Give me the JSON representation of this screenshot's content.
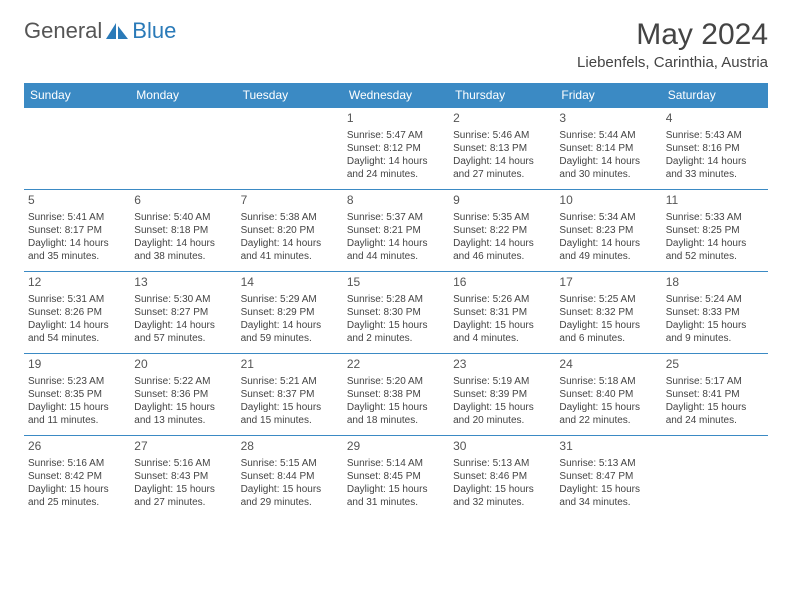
{
  "logo": {
    "part1": "General",
    "part2": "Blue"
  },
  "title": "May 2024",
  "location": "Liebenfels, Carinthia, Austria",
  "colors": {
    "header_bg": "#3b8ac4",
    "header_fg": "#ffffff",
    "border": "#3b8ac4",
    "text": "#444444",
    "logo_gray": "#555555",
    "logo_blue": "#2a7ab8",
    "background": "#ffffff"
  },
  "day_headers": [
    "Sunday",
    "Monday",
    "Tuesday",
    "Wednesday",
    "Thursday",
    "Friday",
    "Saturday"
  ],
  "weeks": [
    [
      null,
      null,
      null,
      {
        "n": "1",
        "sr": "5:47 AM",
        "ss": "8:12 PM",
        "dl": "14 hours and 24 minutes."
      },
      {
        "n": "2",
        "sr": "5:46 AM",
        "ss": "8:13 PM",
        "dl": "14 hours and 27 minutes."
      },
      {
        "n": "3",
        "sr": "5:44 AM",
        "ss": "8:14 PM",
        "dl": "14 hours and 30 minutes."
      },
      {
        "n": "4",
        "sr": "5:43 AM",
        "ss": "8:16 PM",
        "dl": "14 hours and 33 minutes."
      }
    ],
    [
      {
        "n": "5",
        "sr": "5:41 AM",
        "ss": "8:17 PM",
        "dl": "14 hours and 35 minutes."
      },
      {
        "n": "6",
        "sr": "5:40 AM",
        "ss": "8:18 PM",
        "dl": "14 hours and 38 minutes."
      },
      {
        "n": "7",
        "sr": "5:38 AM",
        "ss": "8:20 PM",
        "dl": "14 hours and 41 minutes."
      },
      {
        "n": "8",
        "sr": "5:37 AM",
        "ss": "8:21 PM",
        "dl": "14 hours and 44 minutes."
      },
      {
        "n": "9",
        "sr": "5:35 AM",
        "ss": "8:22 PM",
        "dl": "14 hours and 46 minutes."
      },
      {
        "n": "10",
        "sr": "5:34 AM",
        "ss": "8:23 PM",
        "dl": "14 hours and 49 minutes."
      },
      {
        "n": "11",
        "sr": "5:33 AM",
        "ss": "8:25 PM",
        "dl": "14 hours and 52 minutes."
      }
    ],
    [
      {
        "n": "12",
        "sr": "5:31 AM",
        "ss": "8:26 PM",
        "dl": "14 hours and 54 minutes."
      },
      {
        "n": "13",
        "sr": "5:30 AM",
        "ss": "8:27 PM",
        "dl": "14 hours and 57 minutes."
      },
      {
        "n": "14",
        "sr": "5:29 AM",
        "ss": "8:29 PM",
        "dl": "14 hours and 59 minutes."
      },
      {
        "n": "15",
        "sr": "5:28 AM",
        "ss": "8:30 PM",
        "dl": "15 hours and 2 minutes."
      },
      {
        "n": "16",
        "sr": "5:26 AM",
        "ss": "8:31 PM",
        "dl": "15 hours and 4 minutes."
      },
      {
        "n": "17",
        "sr": "5:25 AM",
        "ss": "8:32 PM",
        "dl": "15 hours and 6 minutes."
      },
      {
        "n": "18",
        "sr": "5:24 AM",
        "ss": "8:33 PM",
        "dl": "15 hours and 9 minutes."
      }
    ],
    [
      {
        "n": "19",
        "sr": "5:23 AM",
        "ss": "8:35 PM",
        "dl": "15 hours and 11 minutes."
      },
      {
        "n": "20",
        "sr": "5:22 AM",
        "ss": "8:36 PM",
        "dl": "15 hours and 13 minutes."
      },
      {
        "n": "21",
        "sr": "5:21 AM",
        "ss": "8:37 PM",
        "dl": "15 hours and 15 minutes."
      },
      {
        "n": "22",
        "sr": "5:20 AM",
        "ss": "8:38 PM",
        "dl": "15 hours and 18 minutes."
      },
      {
        "n": "23",
        "sr": "5:19 AM",
        "ss": "8:39 PM",
        "dl": "15 hours and 20 minutes."
      },
      {
        "n": "24",
        "sr": "5:18 AM",
        "ss": "8:40 PM",
        "dl": "15 hours and 22 minutes."
      },
      {
        "n": "25",
        "sr": "5:17 AM",
        "ss": "8:41 PM",
        "dl": "15 hours and 24 minutes."
      }
    ],
    [
      {
        "n": "26",
        "sr": "5:16 AM",
        "ss": "8:42 PM",
        "dl": "15 hours and 25 minutes."
      },
      {
        "n": "27",
        "sr": "5:16 AM",
        "ss": "8:43 PM",
        "dl": "15 hours and 27 minutes."
      },
      {
        "n": "28",
        "sr": "5:15 AM",
        "ss": "8:44 PM",
        "dl": "15 hours and 29 minutes."
      },
      {
        "n": "29",
        "sr": "5:14 AM",
        "ss": "8:45 PM",
        "dl": "15 hours and 31 minutes."
      },
      {
        "n": "30",
        "sr": "5:13 AM",
        "ss": "8:46 PM",
        "dl": "15 hours and 32 minutes."
      },
      {
        "n": "31",
        "sr": "5:13 AM",
        "ss": "8:47 PM",
        "dl": "15 hours and 34 minutes."
      },
      null
    ]
  ],
  "labels": {
    "sunrise": "Sunrise: ",
    "sunset": "Sunset: ",
    "daylight": "Daylight: "
  }
}
